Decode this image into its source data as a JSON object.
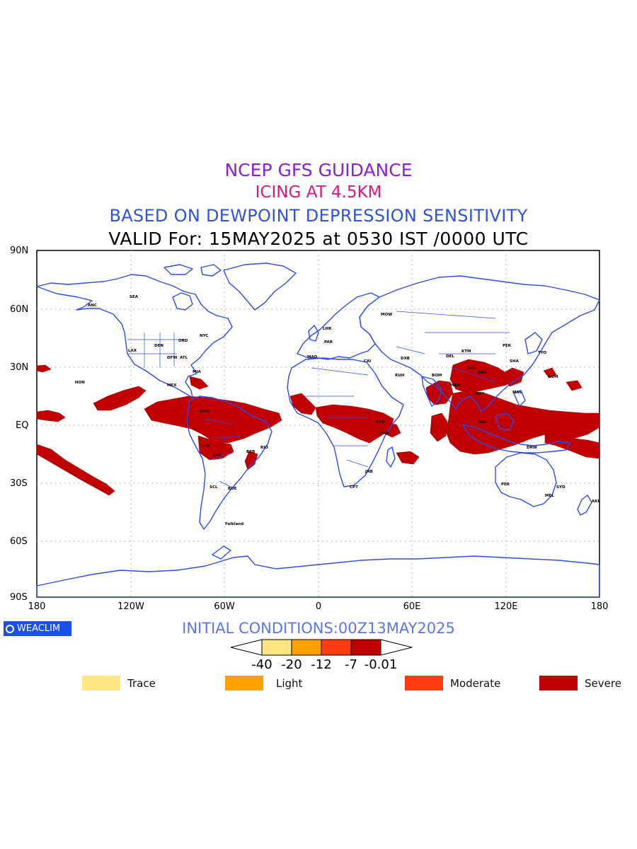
{
  "titles": {
    "line1": "NCEP GFS GUIDANCE",
    "line2": "ICING AT 4.5KM",
    "line3": "BASED ON DEWPOINT DEPRESSION SENSITIVITY",
    "line4": "VALID For: 15MAY2025 at 0530 IST /0000 UTC"
  },
  "axes": {
    "lat_labels": [
      "90N",
      "60N",
      "30N",
      "EQ",
      "30S",
      "60S",
      "90S"
    ],
    "lon_labels": [
      "180",
      "120W",
      "60W",
      "0",
      "60E",
      "120E",
      "180"
    ]
  },
  "logo": {
    "text": "WEACLIM",
    "icon": "weaclim-logo-icon"
  },
  "initial_conditions": "INITIAL CONDITIONS:00Z13MAY2025",
  "colorbar": {
    "ticks": [
      "-40",
      "-20",
      "-12",
      "-7",
      "-0.01"
    ],
    "colors": [
      "#ffe680",
      "#ffa000",
      "#ff3c10",
      "#c00000"
    ]
  },
  "legend": [
    {
      "label": "Trace",
      "color": "#ffe680"
    },
    {
      "label": "Light",
      "color": "#ffa000"
    },
    {
      "label": "Moderate",
      "color": "#ff3c10"
    },
    {
      "label": "Severe",
      "color": "#c00000"
    }
  ],
  "station_labels": [
    "ANC",
    "SEA",
    "LAX",
    "DEN",
    "DFW",
    "ORD",
    "ATL",
    "MIA",
    "NYC",
    "HON",
    "MEX",
    "BOG",
    "LIM",
    "LPZ",
    "SCL",
    "BSB",
    "RIO",
    "BUE",
    "Falkland",
    "LHR",
    "PAR",
    "MAD",
    "MOW",
    "CAI",
    "RUH",
    "DXB",
    "NBO",
    "DAR",
    "CPT",
    "JNB",
    "DEL",
    "BOM",
    "MAA",
    "CCU",
    "DAC",
    "KTM",
    "PEK",
    "SHA",
    "TYO",
    "BKK",
    "SIN",
    "MNL",
    "GUM",
    "DRW",
    "PER",
    "SYD",
    "MEL",
    "AKL"
  ],
  "icing_map": {
    "color": "#c00000",
    "category": "Severe",
    "regions": [
      "Central Pacific",
      "Tropical Atlantic",
      "Central America",
      "Amazon",
      "Central Africa",
      "Bay of Bengal",
      "Tibet",
      "Southeast Asia",
      "Indonesia",
      "West Pacific",
      "South Pacific"
    ]
  }
}
